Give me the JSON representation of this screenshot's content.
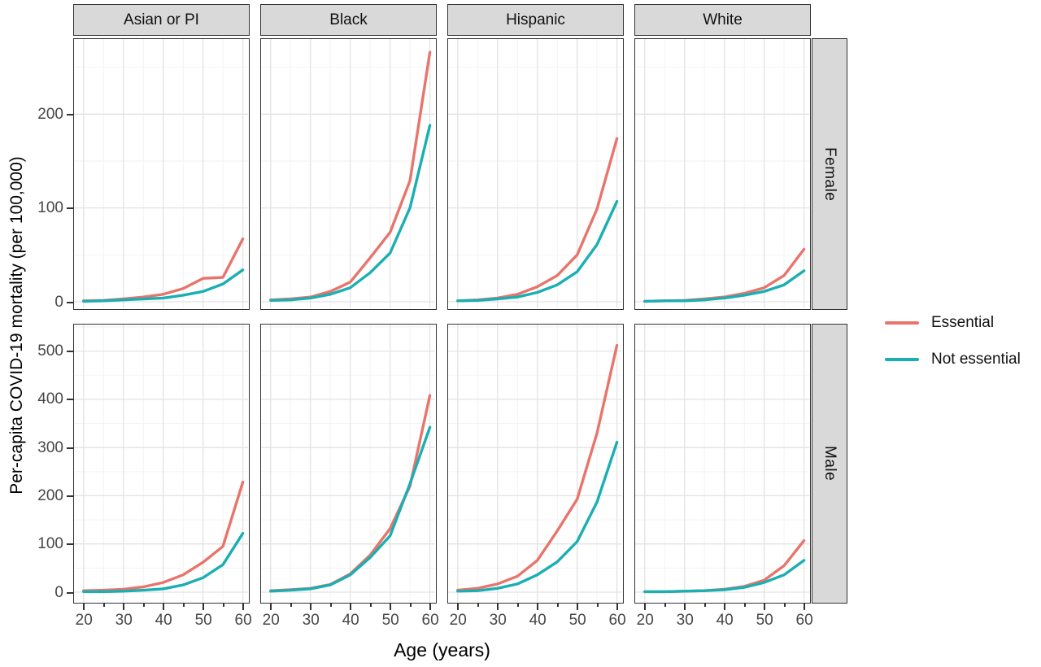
{
  "chart_data": {
    "type": "line",
    "x": [
      20,
      25,
      30,
      35,
      40,
      45,
      50,
      55,
      60
    ],
    "x_ticks": [
      20,
      30,
      40,
      50,
      60
    ],
    "x_minor_ticks": [
      25,
      35,
      45,
      55
    ],
    "xlim": [
      17.6,
      61.3
    ],
    "xlabel": "Age (years)",
    "ylabel": "Per-capita COVID-19 mortality (per 100,000)",
    "col_facets": [
      "Asian or PI",
      "Black",
      "Hispanic",
      "White"
    ],
    "row_facets": [
      "Female",
      "Male"
    ],
    "series_names": [
      "Essential",
      "Not essential"
    ],
    "series_colors": [
      "#E8756C",
      "#1AAFB2"
    ],
    "grid": true,
    "legend_position": "right",
    "rows": [
      {
        "label": "Female",
        "ylim": [
          0,
          280
        ],
        "yticks": [
          0,
          100,
          200
        ],
        "yminor": [
          50,
          150,
          250
        ]
      },
      {
        "label": "Male",
        "ylim": [
          0,
          555
        ],
        "yticks": [
          0,
          100,
          200,
          300,
          400,
          500
        ],
        "yminor": [
          50,
          150,
          250,
          350,
          450,
          550
        ]
      }
    ],
    "panels": [
      {
        "row": "Female",
        "col": "Asian or PI",
        "series": [
          {
            "name": "Essential",
            "values": [
              1,
              1.5,
              3,
              5,
              8,
              14,
              25,
              26,
              67
            ]
          },
          {
            "name": "Not essential",
            "values": [
              0.5,
              1,
              2,
              3,
              4,
              7,
              11,
              19,
              34
            ]
          }
        ]
      },
      {
        "row": "Female",
        "col": "Black",
        "series": [
          {
            "name": "Essential",
            "values": [
              2,
              3,
              5,
              11,
              21,
              47,
              74,
              129,
              266
            ]
          },
          {
            "name": "Not essential",
            "values": [
              1.5,
              2,
              4,
              8,
              15,
              31,
              52,
              100,
              188
            ]
          }
        ]
      },
      {
        "row": "Female",
        "col": "Hispanic",
        "series": [
          {
            "name": "Essential",
            "values": [
              1,
              2,
              4,
              8,
              16,
              28,
              50,
              99,
              174
            ]
          },
          {
            "name": "Not essential",
            "values": [
              1,
              1.5,
              3,
              5,
              10,
              18,
              32,
              61,
              107
            ]
          }
        ]
      },
      {
        "row": "Female",
        "col": "White",
        "series": [
          {
            "name": "Essential",
            "values": [
              0.5,
              1,
              1.5,
              3,
              5,
              9,
              15,
              28,
              56
            ]
          },
          {
            "name": "Not essential",
            "values": [
              0.5,
              1,
              1,
              2,
              4,
              7,
              11,
              18,
              33
            ]
          }
        ]
      },
      {
        "row": "Male",
        "col": "Asian or PI",
        "series": [
          {
            "name": "Essential",
            "values": [
              3,
              4,
              6,
              11,
              20,
              36,
              62,
              95,
              228
            ]
          },
          {
            "name": "Not essential",
            "values": [
              1,
              1,
              2,
              4,
              7,
              15,
              30,
              57,
              122
            ]
          }
        ]
      },
      {
        "row": "Male",
        "col": "Black",
        "series": [
          {
            "name": "Essential",
            "values": [
              3,
              5,
              8,
              16,
              38,
              77,
              132,
              220,
              408
            ]
          },
          {
            "name": "Not essential",
            "values": [
              2,
              4,
              7,
              15,
              36,
              72,
              117,
              225,
              342
            ]
          }
        ]
      },
      {
        "row": "Male",
        "col": "Hispanic",
        "series": [
          {
            "name": "Essential",
            "values": [
              4,
              8,
              17,
              33,
              66,
              127,
              193,
              330,
              512
            ]
          },
          {
            "name": "Not essential",
            "values": [
              2,
              3,
              8,
              17,
              36,
              63,
              105,
              187,
              311
            ]
          }
        ]
      },
      {
        "row": "Male",
        "col": "White",
        "series": [
          {
            "name": "Essential",
            "values": [
              1,
              1,
              2,
              3,
              6,
              12,
              25,
              55,
              107
            ]
          },
          {
            "name": "Not essential",
            "values": [
              1,
              1,
              2,
              3,
              5,
              10,
              20,
              36,
              66
            ]
          }
        ]
      }
    ]
  }
}
